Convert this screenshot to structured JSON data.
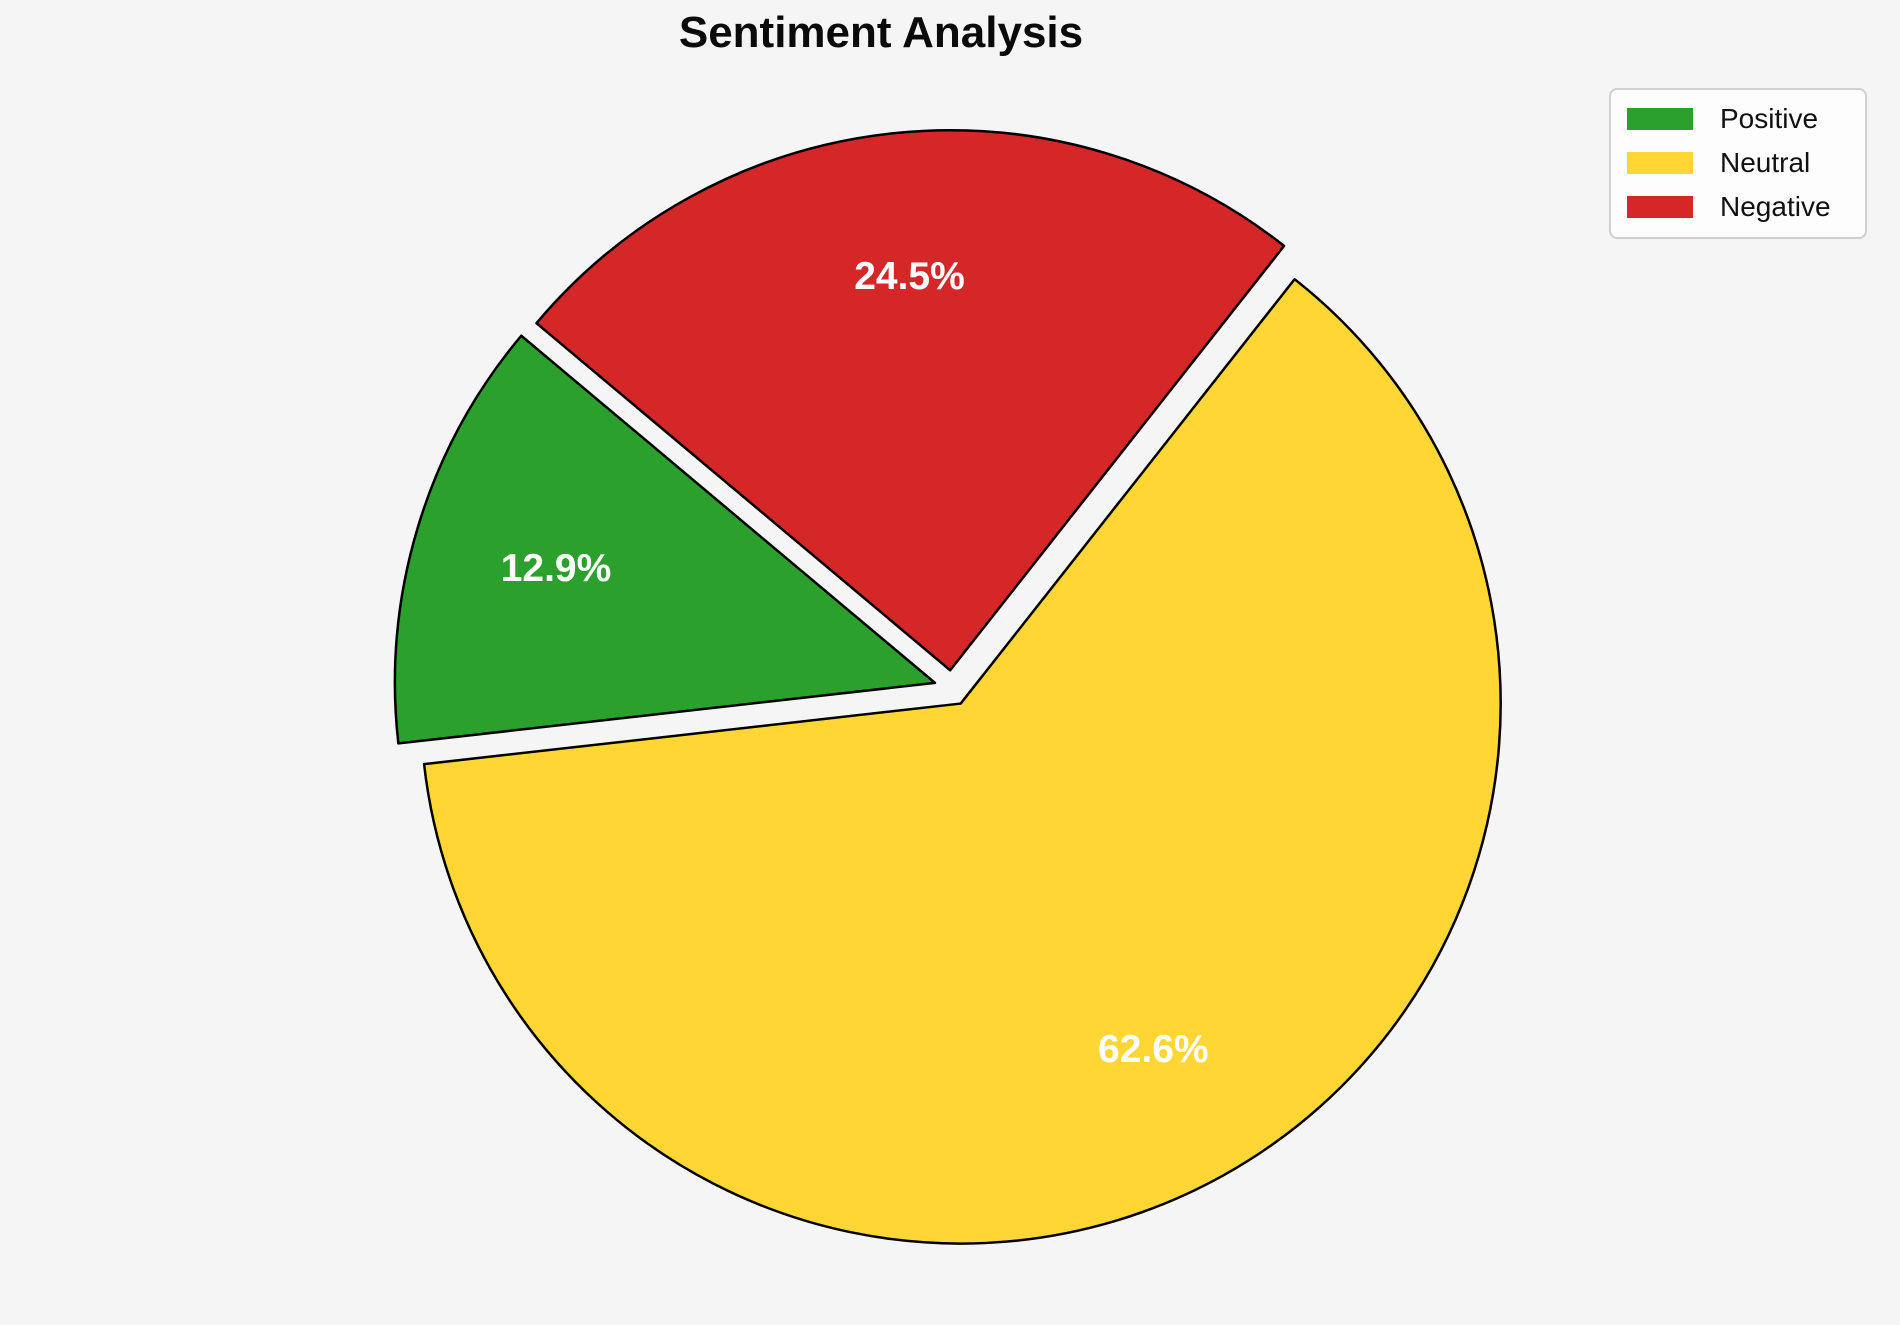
{
  "figure": {
    "background_color": "#f5f5f5"
  },
  "chart_data": {
    "type": "pie",
    "title": "Sentiment Analysis",
    "categories": [
      "Positive",
      "Neutral",
      "Negative"
    ],
    "values": [
      12.9,
      62.6,
      24.5
    ],
    "slices": [
      {
        "label": "Positive",
        "value": 12.9,
        "percent_label": "12.9%",
        "color": "#2ca02c"
      },
      {
        "label": "Neutral",
        "value": 62.6,
        "percent_label": "62.6%",
        "color": "#ffd633"
      },
      {
        "label": "Negative",
        "value": 24.5,
        "percent_label": "24.5%",
        "color": "#d62728"
      }
    ],
    "start_angle": 140,
    "direction": "counterclockwise",
    "explode": 0.033,
    "edge_color": "#000000",
    "percent_label_color": "#ffffff",
    "legend": {
      "position": "upper right",
      "entries": [
        "Positive",
        "Neutral",
        "Negative"
      ]
    }
  }
}
